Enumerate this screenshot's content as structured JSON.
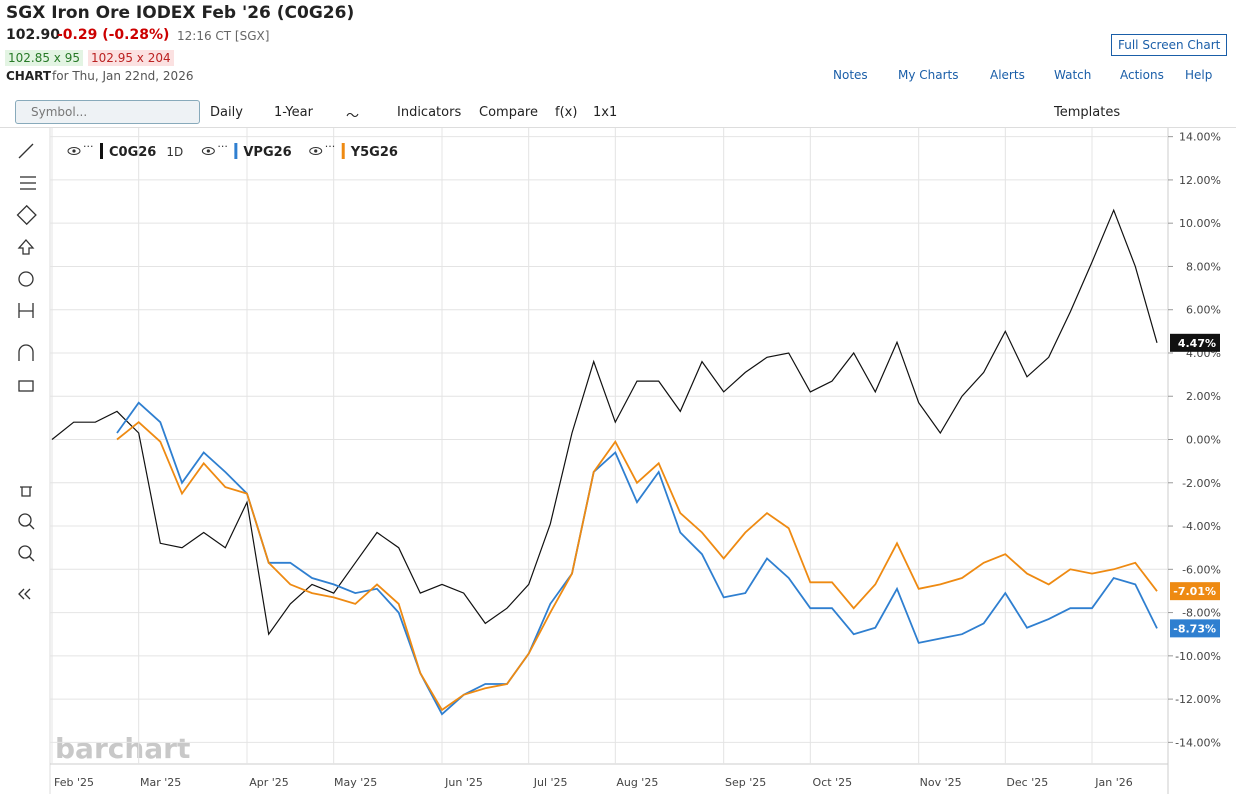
{
  "header": {
    "title": "SGX Iron Ore IODEX Feb '26 (C0G26)",
    "price": "102.90",
    "change": "-0.29 (-0.28%)",
    "time": "12:16 CT [SGX]",
    "bid": "102.85 x 95",
    "ask": "102.95 x 204",
    "chart_label": "CHART",
    "chart_date": "for Thu, Jan 22nd, 2026",
    "full_screen": "Full Screen Chart"
  },
  "nav": [
    "Notes",
    "My Charts",
    "Alerts",
    "Watch",
    "Actions",
    "Help"
  ],
  "toolbar": {
    "symbol_placeholder": "Symbol...",
    "items": [
      "Daily",
      "1-Year",
      "Indicators",
      "Compare",
      "f(x)",
      "1x1"
    ],
    "templates": "Templates"
  },
  "watermark": "barchart",
  "chart_data": {
    "type": "line",
    "categories": [
      "Feb '25",
      null,
      null,
      null,
      "Mar '25",
      null,
      null,
      null,
      null,
      "Apr '25",
      null,
      null,
      null,
      "May '25",
      null,
      null,
      null,
      null,
      "Jun '25",
      null,
      null,
      null,
      "Jul '25",
      null,
      null,
      null,
      "Aug '25",
      null,
      null,
      null,
      null,
      "Sep '25",
      null,
      null,
      null,
      "Oct '25",
      null,
      null,
      null,
      null,
      "Nov '25",
      null,
      null,
      null,
      "Dec '25",
      null,
      null,
      null,
      "Jan '26",
      null,
      null,
      null
    ],
    "interval": "1D",
    "series": [
      {
        "name": "C0G26",
        "color": "#111111",
        "values": [
          0,
          0.8,
          0.8,
          1.3,
          0.3,
          -4.8,
          -5.0,
          -4.3,
          -5.0,
          -2.9,
          -9.0,
          -7.6,
          -6.7,
          -7.1,
          -5.7,
          -4.3,
          -5.0,
          -7.1,
          -6.7,
          -7.1,
          -8.5,
          -7.8,
          -6.7,
          -3.9,
          0.3,
          3.6,
          0.8,
          2.7,
          2.7,
          1.3,
          3.6,
          2.2,
          3.1,
          3.8,
          4.0,
          2.2,
          2.7,
          4.0,
          2.2,
          4.5,
          1.7,
          0.3,
          2.0,
          3.1,
          5.0,
          2.9,
          3.8,
          5.9,
          8.2,
          10.6,
          8.0,
          4.47
        ],
        "value_labels": [
          null,
          null,
          null,
          null,
          null,
          null,
          null,
          null,
          null,
          null,
          null,
          null,
          null,
          null,
          null,
          null,
          null,
          null,
          null,
          null,
          null,
          null,
          null,
          null,
          null,
          null,
          null,
          null,
          null,
          null,
          null,
          null,
          null,
          null,
          null,
          null,
          null,
          null,
          null,
          null,
          null,
          null,
          null,
          null,
          null,
          null,
          null,
          null,
          null,
          null,
          null,
          "4.47%"
        ]
      },
      {
        "name": "VPG26",
        "color": "#2f7fd0",
        "values": [
          null,
          null,
          null,
          0.3,
          1.7,
          0.8,
          -2.0,
          -0.6,
          -1.5,
          -2.5,
          -5.7,
          -5.7,
          -6.4,
          -6.7,
          -7.1,
          -6.9,
          -8.0,
          -10.8,
          -12.7,
          -11.8,
          -11.3,
          -11.3,
          -9.9,
          -7.6,
          -6.2,
          -1.5,
          -0.6,
          -2.9,
          -1.5,
          -4.3,
          -5.3,
          -7.3,
          -7.1,
          -5.5,
          -6.4,
          -7.8,
          -7.8,
          -9.0,
          -8.7,
          -6.9,
          -9.4,
          -9.2,
          -9.0,
          -8.5,
          -7.1,
          -8.7,
          -8.3,
          -7.8,
          -7.8,
          -6.4,
          -6.7,
          -8.73
        ],
        "value_labels": [
          null,
          null,
          null,
          null,
          null,
          null,
          null,
          null,
          null,
          null,
          null,
          null,
          null,
          null,
          null,
          null,
          null,
          null,
          null,
          null,
          null,
          null,
          null,
          null,
          null,
          null,
          null,
          null,
          null,
          null,
          null,
          null,
          null,
          null,
          null,
          null,
          null,
          null,
          null,
          null,
          null,
          null,
          null,
          null,
          null,
          null,
          null,
          null,
          null,
          null,
          null,
          "-8.73%"
        ]
      },
      {
        "name": "Y5G26",
        "color": "#ee8a12",
        "values": [
          null,
          null,
          null,
          0,
          0.8,
          -0.1,
          -2.5,
          -1.1,
          -2.2,
          -2.5,
          -5.7,
          -6.7,
          -7.1,
          -7.3,
          -7.6,
          -6.7,
          -7.6,
          -10.8,
          -12.5,
          -11.8,
          -11.5,
          -11.3,
          -9.9,
          -8.0,
          -6.2,
          -1.5,
          -0.1,
          -2.0,
          -1.1,
          -3.4,
          -4.3,
          -5.5,
          -4.3,
          -3.4,
          -4.1,
          -6.6,
          -6.6,
          -7.8,
          -6.7,
          -4.8,
          -6.9,
          -6.7,
          -6.4,
          -5.7,
          -5.3,
          -6.2,
          -6.7,
          -6.0,
          -6.2,
          -6.0,
          -5.7,
          -7.01
        ],
        "value_labels": [
          null,
          null,
          null,
          null,
          null,
          null,
          null,
          null,
          null,
          null,
          null,
          null,
          null,
          null,
          null,
          null,
          null,
          null,
          null,
          null,
          null,
          null,
          null,
          null,
          null,
          null,
          null,
          null,
          null,
          null,
          null,
          null,
          null,
          null,
          null,
          null,
          null,
          null,
          null,
          null,
          null,
          null,
          null,
          null,
          null,
          null,
          null,
          null,
          null,
          null,
          null,
          "-7.01%"
        ]
      }
    ],
    "ylim": [
      -15.0,
      14.4
    ],
    "yticks": [
      {
        "value": 14,
        "label": "14.00%"
      },
      {
        "value": 12,
        "label": "12.00%"
      },
      {
        "value": 10,
        "label": "10.00%"
      },
      {
        "value": 8,
        "label": "8.00%"
      },
      {
        "value": 6,
        "label": "6.00%"
      },
      {
        "value": 4,
        "label": "4.00%"
      },
      {
        "value": 2,
        "label": "2.00%"
      },
      {
        "value": 0,
        "label": "0.00%"
      },
      {
        "value": -2,
        "label": "-2.00%"
      },
      {
        "value": -4,
        "label": "-4.00%"
      },
      {
        "value": -6,
        "label": "-6.00%"
      },
      {
        "value": -8,
        "label": "-8.00%"
      },
      {
        "value": -10,
        "label": "-10.00%"
      },
      {
        "value": -12,
        "label": "-12.00%"
      },
      {
        "value": -14,
        "label": "-14.00%"
      }
    ],
    "grid": true
  }
}
